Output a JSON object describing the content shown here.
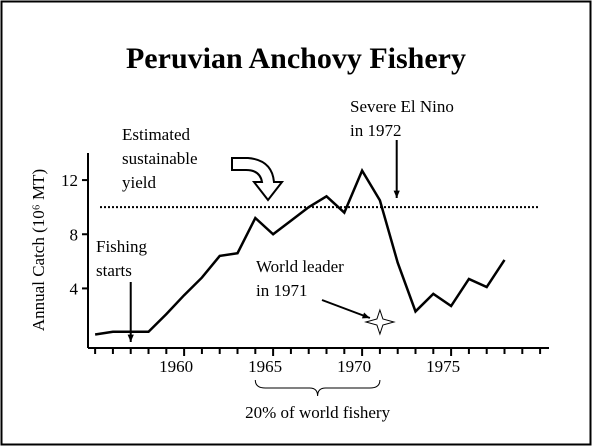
{
  "chart_data": {
    "type": "line",
    "title": "Peruvian Anchovy Fishery",
    "ylabel": "Annual Catch (10⁶ MT)",
    "x": [
      1955,
      1956,
      1957,
      1958,
      1959,
      1960,
      1961,
      1962,
      1963,
      1964,
      1965,
      1966,
      1967,
      1968,
      1969,
      1970,
      1971,
      1972,
      1973,
      1974,
      1975,
      1976,
      1977,
      1978
    ],
    "series": [
      {
        "name": "Annual catch",
        "color": "#000000",
        "values": [
          0.6,
          0.8,
          0.8,
          0.8,
          2.1,
          3.5,
          4.8,
          6.4,
          6.6,
          9.2,
          8.0,
          9.0,
          10.0,
          10.8,
          9.6,
          12.7,
          10.5,
          5.9,
          2.3,
          3.6,
          2.7,
          4.7,
          4.1,
          6.1
        ]
      }
    ],
    "xlim": [
      1954.6,
      1980.5
    ],
    "xticks": [
      1960,
      1965,
      1970,
      1975
    ],
    "xticks_minor": [
      1955,
      1956,
      1957,
      1958,
      1959,
      1961,
      1962,
      1963,
      1964,
      1966,
      1967,
      1968,
      1969,
      1971,
      1972,
      1973,
      1974,
      1976,
      1977,
      1978,
      1979,
      1980
    ],
    "ylim": [
      -0.4,
      14
    ],
    "yticks": [
      4,
      8,
      12
    ],
    "sustainable_yield": {
      "value": 10,
      "label": [
        "Estimated",
        "sustainable",
        "yield"
      ]
    },
    "annotations": [
      {
        "lines": [
          "Fishing",
          "starts"
        ],
        "x": 1957
      },
      {
        "lines": [
          "Severe El Nino",
          "in 1972"
        ],
        "x": 1972
      },
      {
        "lines": [
          "World leader",
          "in 1971"
        ],
        "x": 1971
      },
      {
        "lines": [
          "20% of world fishery"
        ],
        "x": [
          1964,
          1971
        ]
      }
    ]
  }
}
